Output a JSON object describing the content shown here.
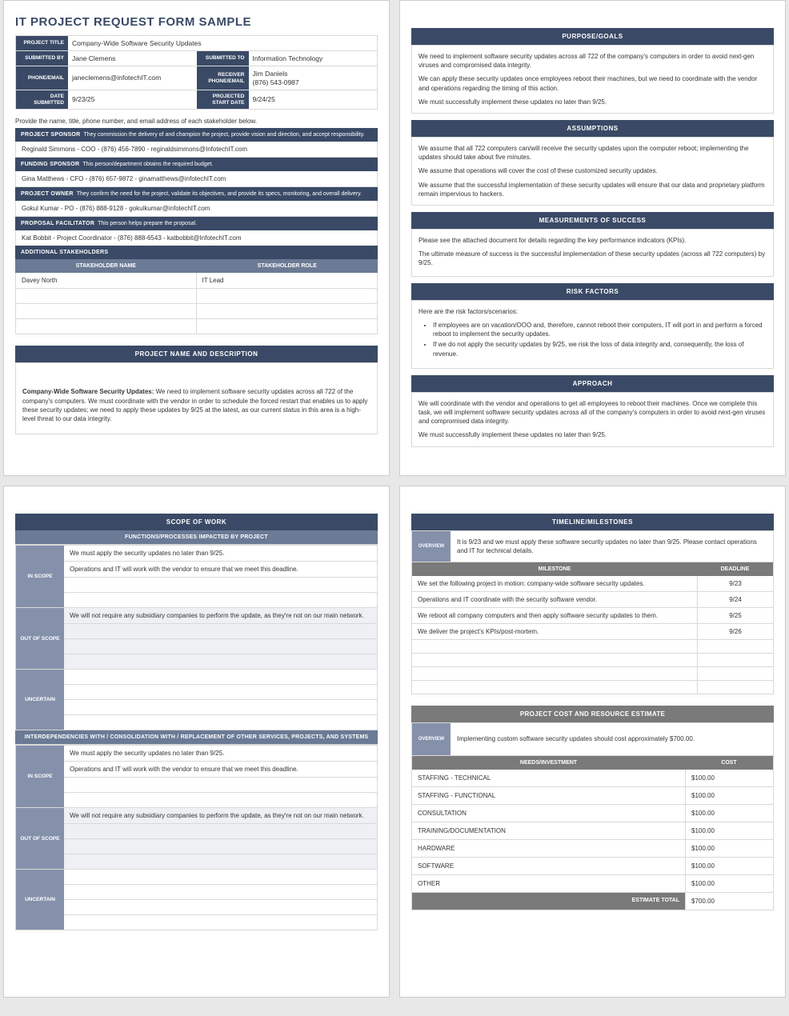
{
  "colors": {
    "navy": "#3a4a66",
    "slate": "#6b7a95",
    "label_blue": "#8591ab",
    "gray": "#7a7a7a",
    "border": "#d9d9d9",
    "page_bg": "#e8e8e8"
  },
  "page1": {
    "title": "IT PROJECT REQUEST FORM SAMPLE",
    "header": {
      "labels": {
        "project_title": "PROJECT TITLE",
        "submitted_by": "SUBMITTED BY",
        "submitted_to": "SUBMITTED TO",
        "phone_email": "PHONE/EMAIL",
        "receiver_phone_email": "RECEIVER PHONE/EMAIL",
        "date_submitted": "DATE SUBMITTED",
        "projected_start_date": "PROJECTED START  DATE"
      },
      "values": {
        "project_title": "Company-Wide Software Security Updates",
        "submitted_by": "Jane Clemens",
        "submitted_to": "Information Technology",
        "phone_email": "janeclemens@infotechIT.com",
        "receiver_name": "Jim Daniels",
        "receiver_phone": "(876) 543-0987",
        "date_submitted": "9/23/25",
        "projected_start_date": "9/24/25"
      }
    },
    "stakeholders": {
      "intro": "Provide the name, title, phone number, and email address of each stakeholder below.",
      "roles": [
        {
          "title": "PROJECT SPONSOR",
          "desc": "They commission the delivery of and champion the project, provide vision and direction, and accept responsibility.",
          "value": "Reginald Simmons - COO - (876) 456-7890 - reginaldsimmons@InfotechIT.com"
        },
        {
          "title": "FUNDING SPONSOR",
          "desc": "This person/department obtains the required budget.",
          "value": "Gina Matthews - CFO - (876) 657-9872 - ginamatthews@infotechIT.com"
        },
        {
          "title": "PROJECT OWNER",
          "desc": "They confirm the need for the project, validate its objectives, and provide its specs, monitoring, and overall delivery.",
          "value": "Gokul Kumar - PO - (876) 888-9128 - gokulkumar@infotechIT.com"
        },
        {
          "title": "PROPOSAL FACILITATOR",
          "desc": "This person helps prepare the proposal.",
          "value": "Kat Bobbit - Project Coordinator - (876) 888-6543 - katbobbit@InfotechIT.com"
        }
      ],
      "additional_header": "ADDITIONAL STAKEHOLDERS",
      "columns": {
        "name": "STAKEHOLDER NAME",
        "role": "STAKEHOLDER ROLE"
      },
      "rows": [
        {
          "name": "Davey North",
          "role": "IT Lead"
        },
        {
          "name": "",
          "role": ""
        },
        {
          "name": "",
          "role": ""
        },
        {
          "name": "",
          "role": ""
        }
      ]
    },
    "description": {
      "header": "PROJECT NAME AND DESCRIPTION",
      "name": "Company-Wide Software Security Updates:",
      "body": "We need to implement software security updates across all 722 of the company's computers. We must coordinate with the vendor in order to schedule the forced restart that enables us to apply these security updates; we need to apply these updates by 9/25 at the latest, as our current status in this area is a high-level threat to our data integrity."
    }
  },
  "page2": {
    "sections": [
      {
        "header": "PURPOSE/GOALS",
        "paras": [
          "We need to implement software security updates across all 722 of the company's computers in order to avoid next-gen viruses and compromised data integrity.",
          "We can apply these security updates once employees reboot their machines, but we need to coordinate with the vendor and operations regarding the timing of this action.",
          "We must successfully implement these updates no later than 9/25."
        ]
      },
      {
        "header": "ASSUMPTIONS",
        "paras": [
          "We assume that all 722 computers can/will receive the security updates upon the computer reboot; implementing the updates should take about five minutes.",
          "We assume that operations will cover the cost of these customized security updates.",
          "We assume that the successful implementation of these security updates will ensure that our data and proprietary platform remain impervious to hackers."
        ]
      },
      {
        "header": "MEASUREMENTS OF SUCCESS",
        "paras": [
          "Please see the attached document for details regarding the key performance indicators (KPIs).",
          "The ultimate measure of success is the successful implementation of these security updates (across all 722 computers) by 9/25."
        ],
        "extra_space": true
      },
      {
        "header": "RISK FACTORS",
        "intro": "Here are the risk factors/scenarios:",
        "bullets": [
          "If employees are on vacation/OOO and, therefore, cannot reboot their computers, IT will port in and perform a forced reboot to implement the security updates.",
          "If we do not apply the security updates by 9/25, we risk the loss of data integrity and, consequently, the loss of revenue."
        ]
      },
      {
        "header": "APPROACH",
        "paras": [
          "We will coordinate with the vendor and operations to get all employees to reboot their machines. Once we complete this task, we will implement software security updates across all of the company's computers in order to avoid next-gen viruses and compromised data integrity.",
          "We must successfully implement these updates no later than 9/25."
        ]
      }
    ]
  },
  "page3": {
    "scope_header": "SCOPE OF WORK",
    "functions_header": "FUNCTIONS/PROCESSES IMPACTED BY PROJECT",
    "interdep_header": "INTERDEPENDENCIES WITH / CONSOLIDATION WITH / REPLACEMENT OF OTHER SERVICES, PROJECTS, AND SYSTEMS",
    "groups1": [
      {
        "label": "IN SCOPE",
        "rows": [
          "We must apply the security updates no later than 9/25.",
          "Operations and IT will work with the vendor to ensure that we meet this deadline.",
          "",
          ""
        ]
      },
      {
        "label": "OUT OF SCOPE",
        "alt": true,
        "rows": [
          "We will not require any subsidiary companies to perform the update, as they're not on our main network.",
          "",
          "",
          ""
        ]
      },
      {
        "label": "UNCERTAIN",
        "rows": [
          "",
          "",
          "",
          ""
        ]
      }
    ],
    "groups2": [
      {
        "label": "IN SCOPE",
        "rows": [
          "We must apply the security updates no later than 9/25.",
          "Operations and IT will work with the vendor to ensure that we meet this deadline.",
          "",
          ""
        ]
      },
      {
        "label": "OUT OF SCOPE",
        "alt": true,
        "rows": [
          "We will not require any subsidiary companies to perform the update, as they're not on our main network.",
          "",
          "",
          ""
        ]
      },
      {
        "label": "UNCERTAIN",
        "rows": [
          "",
          "",
          "",
          ""
        ]
      }
    ]
  },
  "page4": {
    "timeline": {
      "header": "TIMELINE/MILESTONES",
      "overview_label": "OVERVIEW",
      "overview_text": "It is 9/23 and we must apply these software security updates no later than 9/25. Please contact operations and IT for technical details.",
      "col_milestone": "MILESTONE",
      "col_deadline": "DEADLINE",
      "rows": [
        {
          "m": "We set the following project in motion: company-wide software security updates.",
          "d": "9/23"
        },
        {
          "m": "Operations and IT coordinate with the security software vendor.",
          "d": "9/24"
        },
        {
          "m": "We reboot all company computers and then apply software security updates to them.",
          "d": "9/25"
        },
        {
          "m": "We deliver the project's KPIs/post-mortem.",
          "d": "9/26"
        },
        {
          "m": "",
          "d": ""
        },
        {
          "m": "",
          "d": ""
        },
        {
          "m": "",
          "d": ""
        },
        {
          "m": "",
          "d": ""
        }
      ]
    },
    "cost": {
      "header": "PROJECT COST AND RESOURCE ESTIMATE",
      "overview_label": "OVERVIEW",
      "overview_text": "Implementing custom software security updates should cost approximately $700.00.",
      "col_needs": "NEEDS/INVESTMENT",
      "col_cost": "COST",
      "rows": [
        {
          "n": "STAFFING - TECHNICAL",
          "c": "$100.00"
        },
        {
          "n": "STAFFING - FUNCTIONAL",
          "c": "$100.00"
        },
        {
          "n": "CONSULTATION",
          "c": "$100.00"
        },
        {
          "n": "TRAINING/DOCUMENTATION",
          "c": "$100.00"
        },
        {
          "n": "HARDWARE",
          "c": "$100.00"
        },
        {
          "n": "SOFTWARE",
          "c": "$100.00"
        },
        {
          "n": "OTHER",
          "c": "$100.00"
        }
      ],
      "total_label": "ESTIMATE TOTAL",
      "total_value": "$700.00"
    }
  }
}
